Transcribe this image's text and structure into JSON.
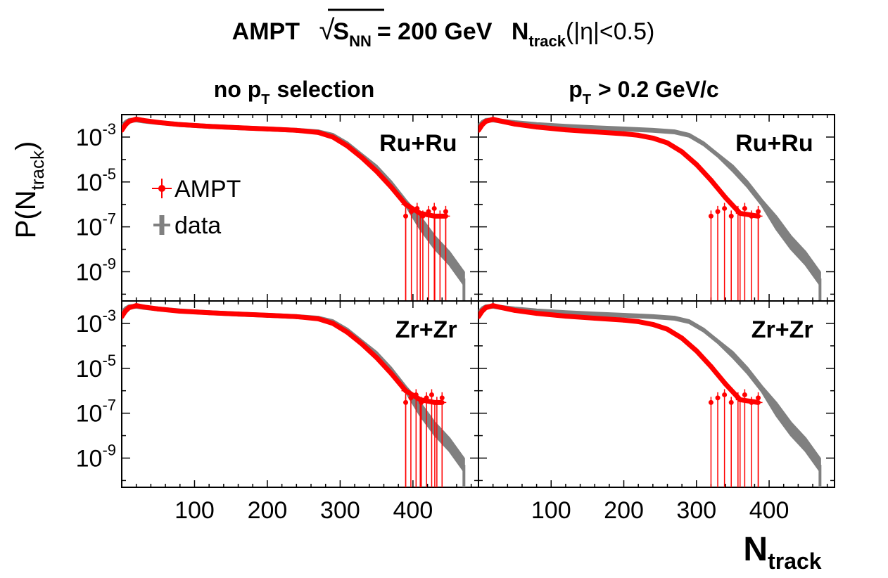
{
  "header": {
    "title_prefix": "AMPT",
    "sqrt_s_label": "S",
    "sqrt_s_sub": "NN",
    "energy": "= 200 GeV",
    "ntrack_main": "N",
    "ntrack_sub": "track",
    "ntrack_suffix": "(|η|<0.5)"
  },
  "column_titles": {
    "left": "no p_T selection",
    "left_pre": "no p",
    "left_sub": "T",
    "left_post": "selection",
    "right_pre": "p",
    "right_sub": "T",
    "right_post": "> 0.2 GeV/c"
  },
  "axes": {
    "ylabel_pre": "P(N",
    "ylabel_sub": "track",
    "ylabel_post": ")",
    "xlabel_main": "N",
    "xlabel_sub": "track",
    "x_ticks": [
      "100",
      "200",
      "300",
      "400"
    ],
    "y_ticks": [
      {
        "base": "10",
        "exp": "-3"
      },
      {
        "base": "10",
        "exp": "-5"
      },
      {
        "base": "10",
        "exp": "-7"
      },
      {
        "base": "10",
        "exp": "-9"
      }
    ]
  },
  "legend": {
    "items": [
      {
        "label": "AMPT",
        "color": "#ff0000"
      },
      {
        "label": "data",
        "color": "#808080"
      }
    ]
  },
  "panel_labels": {
    "ru": "Ru+Ru",
    "zr": "Zr+Zr"
  },
  "colors": {
    "ampt": "#ff0000",
    "data": "#808080"
  },
  "chart_data": {
    "type": "line",
    "xlim": [
      0,
      490
    ],
    "ylim": [
      5e-11,
      0.01
    ],
    "y_scale": "log",
    "grid": false,
    "legend_position": "top-left",
    "panels": [
      {
        "id": "ru-nopt",
        "system": "Ru+Ru",
        "selection": "no p_T selection",
        "series": [
          {
            "name": "AMPT",
            "x": [
              0,
              5,
              10,
              20,
              30,
              50,
              80,
              120,
              160,
              200,
              240,
              270,
              290,
              310,
              330,
              350,
              370,
              390,
              410,
              430,
              445
            ],
            "y": [
              0.002,
              0.0035,
              0.005,
              0.0063,
              0.0055,
              0.0045,
              0.0036,
              0.003,
              0.0026,
              0.0023,
              0.002,
              0.0016,
              0.001,
              0.0004,
              0.00012,
              3e-05,
              6e-06,
              1e-06,
              4e-07,
              3e-07,
              3e-07
            ]
          },
          {
            "name": "data",
            "x": [
              0,
              5,
              10,
              20,
              30,
              50,
              80,
              120,
              160,
              200,
              240,
              270,
              290,
              310,
              330,
              350,
              370,
              390,
              410,
              430,
              450,
              470
            ],
            "y": [
              0.003,
              0.0045,
              0.0055,
              0.0058,
              0.0052,
              0.0044,
              0.0036,
              0.003,
              0.0026,
              0.0023,
              0.002,
              0.0017,
              0.0012,
              0.0005,
              0.00015,
              4e-05,
              8e-06,
              1.2e-06,
              1.5e-07,
              2e-08,
              4e-09,
              5e-10
            ]
          }
        ]
      },
      {
        "id": "ru-pt02",
        "system": "Ru+Ru",
        "selection": "p_T > 0.2 GeV/c",
        "series": [
          {
            "name": "AMPT",
            "x": [
              0,
              5,
              10,
              20,
              30,
              50,
              80,
              120,
              160,
              200,
              220,
              240,
              260,
              280,
              300,
              320,
              340,
              360,
              385
            ],
            "y": [
              0.002,
              0.0035,
              0.005,
              0.0062,
              0.0052,
              0.0038,
              0.0028,
              0.0021,
              0.0017,
              0.0014,
              0.0012,
              0.0009,
              0.00055,
              0.00022,
              6e-05,
              1.2e-05,
              2e-06,
              4e-07,
              3e-07
            ]
          },
          {
            "name": "data",
            "x": [
              0,
              5,
              10,
              20,
              30,
              50,
              80,
              120,
              160,
              200,
              240,
              270,
              290,
              310,
              330,
              350,
              370,
              390,
              410,
              430,
              450,
              470
            ],
            "y": [
              0.003,
              0.0045,
              0.0055,
              0.0058,
              0.0052,
              0.0044,
              0.0036,
              0.003,
              0.0026,
              0.0023,
              0.002,
              0.0017,
              0.0012,
              0.0005,
              0.00015,
              4e-05,
              8e-06,
              1.2e-06,
              1.5e-07,
              2e-08,
              4e-09,
              5e-10
            ]
          }
        ]
      },
      {
        "id": "zr-nopt",
        "system": "Zr+Zr",
        "selection": "no p_T selection",
        "series": [
          {
            "name": "AMPT",
            "x": [
              0,
              5,
              10,
              20,
              30,
              50,
              80,
              120,
              160,
              200,
              240,
              270,
              290,
              310,
              330,
              350,
              370,
              390,
              410,
              430,
              440
            ],
            "y": [
              0.002,
              0.0035,
              0.005,
              0.0062,
              0.0054,
              0.0044,
              0.0035,
              0.003,
              0.0026,
              0.0023,
              0.002,
              0.0016,
              0.001,
              0.0004,
              0.00012,
              3e-05,
              6e-06,
              1e-06,
              4e-07,
              3e-07,
              3e-07
            ]
          },
          {
            "name": "data",
            "x": [
              0,
              5,
              10,
              20,
              30,
              50,
              80,
              120,
              160,
              200,
              240,
              270,
              290,
              310,
              330,
              350,
              370,
              390,
              410,
              430,
              450,
              470
            ],
            "y": [
              0.003,
              0.0045,
              0.0055,
              0.0058,
              0.0052,
              0.0044,
              0.0036,
              0.003,
              0.0026,
              0.0023,
              0.002,
              0.0017,
              0.0012,
              0.0005,
              0.00015,
              4e-05,
              8e-06,
              1.2e-06,
              1.5e-07,
              2e-08,
              4e-09,
              5e-10
            ]
          }
        ]
      },
      {
        "id": "zr-pt02",
        "system": "Zr+Zr",
        "selection": "p_T > 0.2 GeV/c",
        "series": [
          {
            "name": "AMPT",
            "x": [
              0,
              5,
              10,
              20,
              30,
              50,
              80,
              120,
              160,
              200,
              220,
              240,
              260,
              280,
              300,
              320,
              340,
              360,
              385
            ],
            "y": [
              0.002,
              0.0035,
              0.005,
              0.0062,
              0.0052,
              0.0038,
              0.0028,
              0.0021,
              0.0017,
              0.0014,
              0.0012,
              0.0009,
              0.00055,
              0.00022,
              6e-05,
              1.2e-05,
              2e-06,
              4e-07,
              3e-07
            ]
          },
          {
            "name": "data",
            "x": [
              0,
              5,
              10,
              20,
              30,
              50,
              80,
              120,
              160,
              200,
              240,
              270,
              290,
              310,
              330,
              350,
              370,
              390,
              410,
              430,
              450,
              470
            ],
            "y": [
              0.003,
              0.0045,
              0.0055,
              0.0058,
              0.0052,
              0.0044,
              0.0036,
              0.003,
              0.0026,
              0.0023,
              0.002,
              0.0017,
              0.0012,
              0.0005,
              0.00015,
              4e-05,
              8e-06,
              1.2e-06,
              1.5e-07,
              2e-08,
              4e-09,
              5e-10
            ]
          }
        ]
      }
    ]
  }
}
